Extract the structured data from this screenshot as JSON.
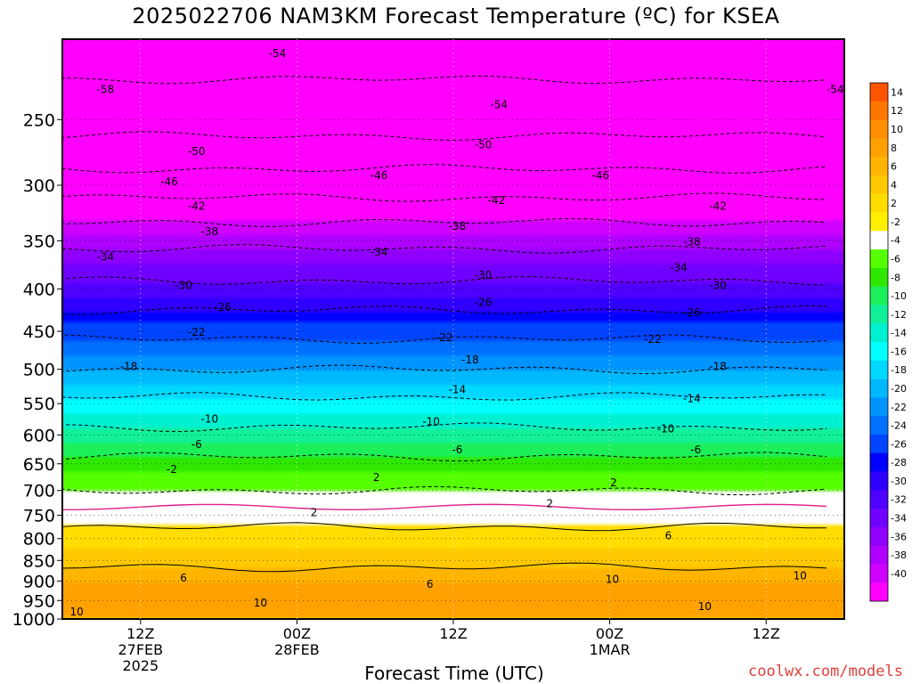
{
  "chart_data": {
    "type": "heatmap",
    "title": "2025022706 NAM3KM Forecast Temperature (ºC) for KSEA",
    "xlabel": "Forecast Time (UTC)",
    "ylabel": "",
    "y_scale": "log",
    "ylim": [
      1000,
      200
    ],
    "xlim_hours": [
      0,
      60
    ],
    "grid": true,
    "y_ticks": [
      250,
      300,
      350,
      400,
      450,
      500,
      550,
      600,
      650,
      700,
      750,
      800,
      850,
      900,
      950,
      1000
    ],
    "x_ticks": [
      {
        "hour": 6,
        "label": [
          "12Z",
          "27FEB",
          "2025"
        ]
      },
      {
        "hour": 18,
        "label": [
          "00Z",
          "28FEB"
        ]
      },
      {
        "hour": 30,
        "label": [
          "12Z"
        ]
      },
      {
        "hour": 42,
        "label": [
          "00Z",
          "1MAR"
        ]
      },
      {
        "hour": 54,
        "label": [
          "12Z"
        ]
      }
    ],
    "levels_hpa": [
      1000,
      950,
      900,
      850,
      800,
      750,
      700,
      650,
      600,
      550,
      500,
      450,
      400,
      350,
      300,
      250,
      200
    ],
    "temperature_profile_c": [
      8,
      9,
      8,
      5,
      3,
      1,
      -2,
      -5,
      -9,
      -13,
      -18,
      -23,
      -29,
      -35,
      -44,
      -52,
      -56
    ],
    "contour_labels": [
      {
        "value": "-54",
        "hour": 16.5,
        "p": 208
      },
      {
        "value": "-58",
        "hour": 3.3,
        "p": 230
      },
      {
        "value": "-54",
        "hour": 33.5,
        "p": 240
      },
      {
        "value": "-54",
        "hour": 59.3,
        "p": 230
      },
      {
        "value": "-50",
        "hour": 10.3,
        "p": 273
      },
      {
        "value": "-50",
        "hour": 32.3,
        "p": 268
      },
      {
        "value": "-46",
        "hour": 8.2,
        "p": 297
      },
      {
        "value": "-46",
        "hour": 24.3,
        "p": 292
      },
      {
        "value": "-46",
        "hour": 41.3,
        "p": 292
      },
      {
        "value": "-42",
        "hour": 10.3,
        "p": 318
      },
      {
        "value": "-42",
        "hour": 33.3,
        "p": 313
      },
      {
        "value": "-42",
        "hour": 50.3,
        "p": 318
      },
      {
        "value": "-38",
        "hour": 11.3,
        "p": 341
      },
      {
        "value": "-38",
        "hour": 30.3,
        "p": 336
      },
      {
        "value": "-38",
        "hour": 48.3,
        "p": 351
      },
      {
        "value": "-34",
        "hour": 3.3,
        "p": 366
      },
      {
        "value": "-34",
        "hour": 24.3,
        "p": 361
      },
      {
        "value": "-34",
        "hour": 47.3,
        "p": 377
      },
      {
        "value": "-30",
        "hour": 9.3,
        "p": 396
      },
      {
        "value": "-30",
        "hour": 32.3,
        "p": 385
      },
      {
        "value": "-30",
        "hour": 50.3,
        "p": 396
      },
      {
        "value": "-26",
        "hour": 12.3,
        "p": 421
      },
      {
        "value": "-26",
        "hour": 32.3,
        "p": 415
      },
      {
        "value": "-26",
        "hour": 48.3,
        "p": 427
      },
      {
        "value": "-22",
        "hour": 10.3,
        "p": 451
      },
      {
        "value": "-22",
        "hour": 29.3,
        "p": 458
      },
      {
        "value": "-22",
        "hour": 45.3,
        "p": 460
      },
      {
        "value": "-18",
        "hour": 5.1,
        "p": 496
      },
      {
        "value": "-18",
        "hour": 31.3,
        "p": 487
      },
      {
        "value": "-18",
        "hour": 50.3,
        "p": 496
      },
      {
        "value": "-14",
        "hour": 30.3,
        "p": 529
      },
      {
        "value": "-14",
        "hour": 48.3,
        "p": 542
      },
      {
        "value": "-10",
        "hour": 11.3,
        "p": 574
      },
      {
        "value": "-10",
        "hour": 28.3,
        "p": 578
      },
      {
        "value": "-10",
        "hour": 46.3,
        "p": 590
      },
      {
        "value": "-6",
        "hour": 10.3,
        "p": 616
      },
      {
        "value": "-6",
        "hour": 30.3,
        "p": 625
      },
      {
        "value": "-6",
        "hour": 48.6,
        "p": 625
      },
      {
        "value": "-2",
        "hour": 8.4,
        "p": 660
      },
      {
        "value": "2",
        "hour": 24.1,
        "p": 675
      },
      {
        "value": "2",
        "hour": 42.3,
        "p": 685
      },
      {
        "value": "2",
        "hour": 37.4,
        "p": 726
      },
      {
        "value": "2",
        "hour": 19.3,
        "p": 744
      },
      {
        "value": "6",
        "hour": 46.5,
        "p": 794
      },
      {
        "value": "6",
        "hour": 9.3,
        "p": 893
      },
      {
        "value": "6",
        "hour": 28.2,
        "p": 908
      },
      {
        "value": "10",
        "hour": 42.2,
        "p": 896
      },
      {
        "value": "10",
        "hour": 56.6,
        "p": 887
      },
      {
        "value": "10",
        "hour": 15.2,
        "p": 956
      },
      {
        "value": "10",
        "hour": 1.1,
        "p": 980
      },
      {
        "value": "10",
        "hour": 49.3,
        "p": 966
      }
    ],
    "colorbar": {
      "labels": [
        "14",
        "12",
        "10",
        "8",
        "6",
        "4",
        "2",
        "-2",
        "-4",
        "-6",
        "-8",
        "-10",
        "-12",
        "-14",
        "-16",
        "-18",
        "-20",
        "-22",
        "-24",
        "-26",
        "-28",
        "-30",
        "-32",
        "-34",
        "-36",
        "-38",
        "-40"
      ],
      "colors": [
        "#ff5500",
        "#ff7700",
        "#ff8f00",
        "#ffa100",
        "#ffb400",
        "#ffc800",
        "#ffdd00",
        "#fff000",
        "#ffffff",
        "#55ff00",
        "#2ee800",
        "#1bf05a",
        "#12f09a",
        "#00f0d2",
        "#00ffff",
        "#00d8ff",
        "#00b8ff",
        "#0094ff",
        "#0070ff",
        "#0044ff",
        "#0000ff",
        "#3000ff",
        "#5000ff",
        "#7000ff",
        "#9000ff",
        "#b000ff",
        "#d000ff",
        "#ff00ff"
      ]
    }
  },
  "credit": "coolwx.com/models"
}
